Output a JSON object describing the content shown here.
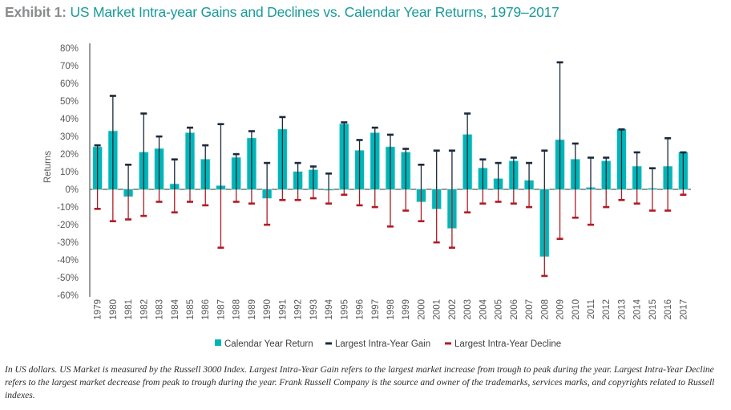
{
  "header": {
    "prefix": "Exhibit 1:",
    "title": "US Market Intra-year Gains and Declines vs. Calendar Year Returns, 1979–2017"
  },
  "footnote": "In US dollars. US Market is measured by the Russell 3000 Index. Largest Intra-Year Gain refers to the largest market increase from trough to peak during the year. Largest Intra-Year Decline refers to the largest market decrease from peak to trough during the year. Frank Russell Company is the source and owner of the trademarks, services marks, and copyrights related to Russell indexes.",
  "colors": {
    "bar": "#00b5b8",
    "gain": "#1b2a3a",
    "decline": "#b01c24",
    "axis": "#595959"
  },
  "chart_data": {
    "type": "bar",
    "title": "US Market Intra-year Gains and Declines vs. Calendar Year Returns, 1979–2017",
    "xlabel": "",
    "ylabel": "Returns",
    "ylim": [
      -60,
      80
    ],
    "yticks": [
      80,
      70,
      60,
      50,
      40,
      30,
      20,
      10,
      0,
      -10,
      -20,
      -30,
      -40,
      -50,
      -60
    ],
    "ytick_labels": [
      "80%",
      "70%",
      "60%",
      "50%",
      "40%",
      "30%",
      "20%",
      "10%",
      "0%",
      "-10%",
      "-20%",
      "-30%",
      "-40%",
      "-50%",
      "-60%"
    ],
    "grid": false,
    "legend_position": "bottom",
    "categories": [
      "1979",
      "1980",
      "1981",
      "1982",
      "1983",
      "1984",
      "1985",
      "1986",
      "1987",
      "1988",
      "1989",
      "1990",
      "1991",
      "1992",
      "1993",
      "1994",
      "1995",
      "1996",
      "1997",
      "1998",
      "1999",
      "2000",
      "2001",
      "2002",
      "2003",
      "2004",
      "2005",
      "2006",
      "2007",
      "2008",
      "2009",
      "2010",
      "2011",
      "2012",
      "2013",
      "2014",
      "2015",
      "2016",
      "2017"
    ],
    "series": [
      {
        "name": "Calendar Year Return",
        "kind": "bar",
        "values": [
          24,
          33,
          -4,
          21,
          23,
          3,
          32,
          17,
          2,
          18,
          29,
          -5,
          34,
          10,
          11,
          0,
          37,
          22,
          32,
          24,
          21,
          -7,
          -11,
          -22,
          31,
          12,
          6,
          16,
          5,
          -38,
          28,
          17,
          1,
          16,
          34,
          13,
          0.5,
          13,
          21
        ]
      },
      {
        "name": "Largest Intra-Year Gain",
        "kind": "errorbar-up",
        "values": [
          25,
          53,
          14,
          43,
          30,
          17,
          35,
          25,
          37,
          20,
          33,
          15,
          41,
          15,
          13,
          9,
          38,
          28,
          35,
          31,
          23,
          14,
          22,
          22,
          43,
          17,
          15,
          18,
          15,
          22,
          72,
          26,
          18,
          18,
          34,
          21,
          12,
          29,
          21
        ]
      },
      {
        "name": "Largest Intra-Year Decline",
        "kind": "errorbar-down",
        "values": [
          -11,
          -18,
          -17,
          -15,
          -7,
          -13,
          -7,
          -9,
          -33,
          -7,
          -8,
          -20,
          -6,
          -6,
          -5,
          -8,
          -3,
          -9,
          -10,
          -21,
          -12,
          -18,
          -30,
          -33,
          -13,
          -8,
          -7,
          -8,
          -10,
          -49,
          -28,
          -16,
          -20,
          -10,
          -6,
          -8,
          -12,
          -12,
          -3
        ]
      }
    ]
  }
}
